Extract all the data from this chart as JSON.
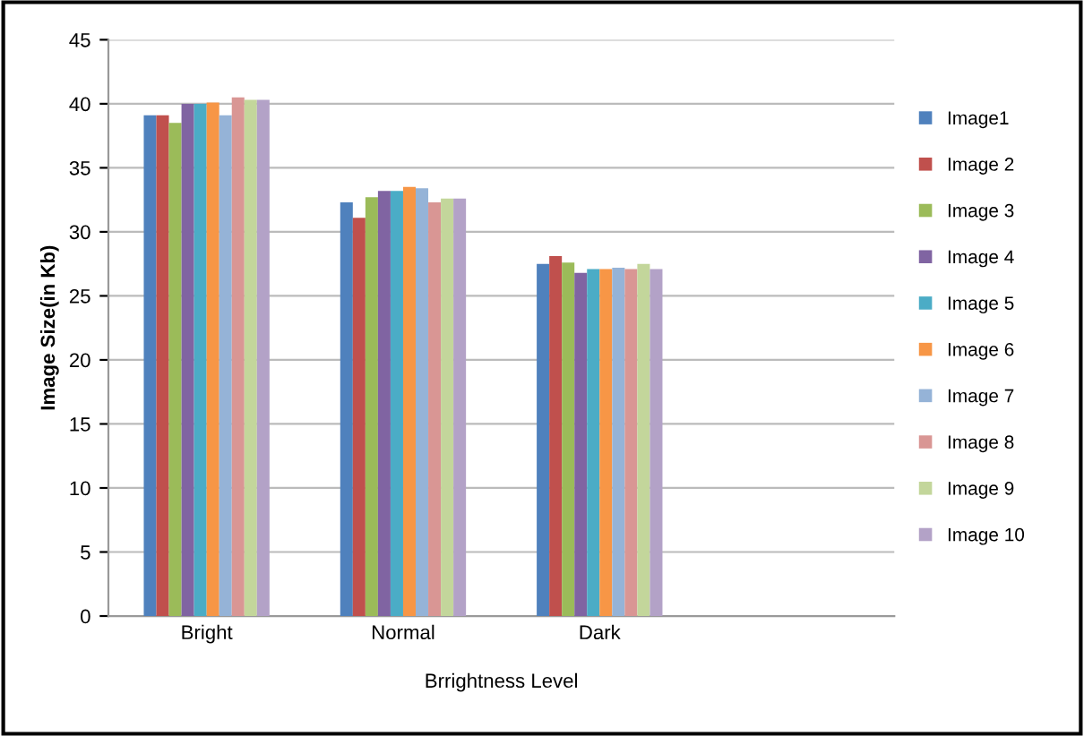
{
  "chart_data": {
    "type": "bar",
    "xlabel": "Brrightness Level",
    "ylabel": "Image Size(in Kb)",
    "categories": [
      "Bright",
      "Normal",
      "Dark",
      null
    ],
    "series": [
      {
        "name": "Image1",
        "color": "#4f81bd",
        "values": [
          39.1,
          32.3,
          27.5,
          null
        ]
      },
      {
        "name": "Image 2",
        "color": "#c0504d",
        "values": [
          39.1,
          31.1,
          28.1,
          null
        ]
      },
      {
        "name": "Image 3",
        "color": "#9bbb59",
        "values": [
          38.5,
          32.7,
          27.6,
          null
        ]
      },
      {
        "name": "Image 4",
        "color": "#8064a2",
        "values": [
          40.0,
          33.2,
          26.8,
          null
        ]
      },
      {
        "name": "Image 5",
        "color": "#4bacc6",
        "values": [
          40.0,
          33.2,
          27.1,
          null
        ]
      },
      {
        "name": "Image 6",
        "color": "#f79646",
        "values": [
          40.1,
          33.5,
          27.1,
          null
        ]
      },
      {
        "name": "Image 7",
        "color": "#95b3d7",
        "values": [
          39.1,
          33.4,
          27.2,
          null
        ]
      },
      {
        "name": "Image 8",
        "color": "#d99694",
        "values": [
          40.5,
          32.3,
          27.1,
          null
        ]
      },
      {
        "name": "Image 9",
        "color": "#c3d69b",
        "values": [
          40.3,
          32.6,
          27.5,
          null
        ]
      },
      {
        "name": "Image 10",
        "color": "#b3a2c7",
        "values": [
          40.3,
          32.6,
          27.1,
          null
        ]
      }
    ],
    "ylim": [
      0,
      45
    ],
    "yticks": [
      0,
      5,
      10,
      15,
      20,
      25,
      30,
      35,
      40,
      45
    ],
    "grid": "y",
    "legend": "right"
  }
}
